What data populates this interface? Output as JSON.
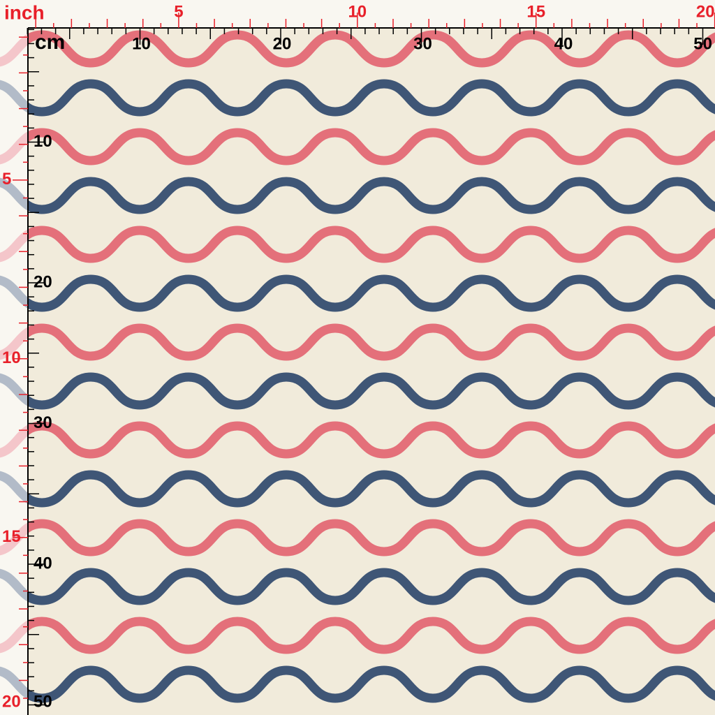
{
  "top_inch_ruler": {
    "unit": "inch",
    "labels": [
      5,
      10,
      15,
      20
    ]
  },
  "top_cm_ruler": {
    "unit": "cm",
    "labels": [
      10,
      20,
      30,
      40,
      50
    ]
  },
  "left_cm_ruler": {
    "labels": [
      10,
      20,
      30,
      40,
      50
    ]
  },
  "left_inch_ruler": {
    "labels": [
      5,
      10,
      15,
      20
    ]
  }
}
